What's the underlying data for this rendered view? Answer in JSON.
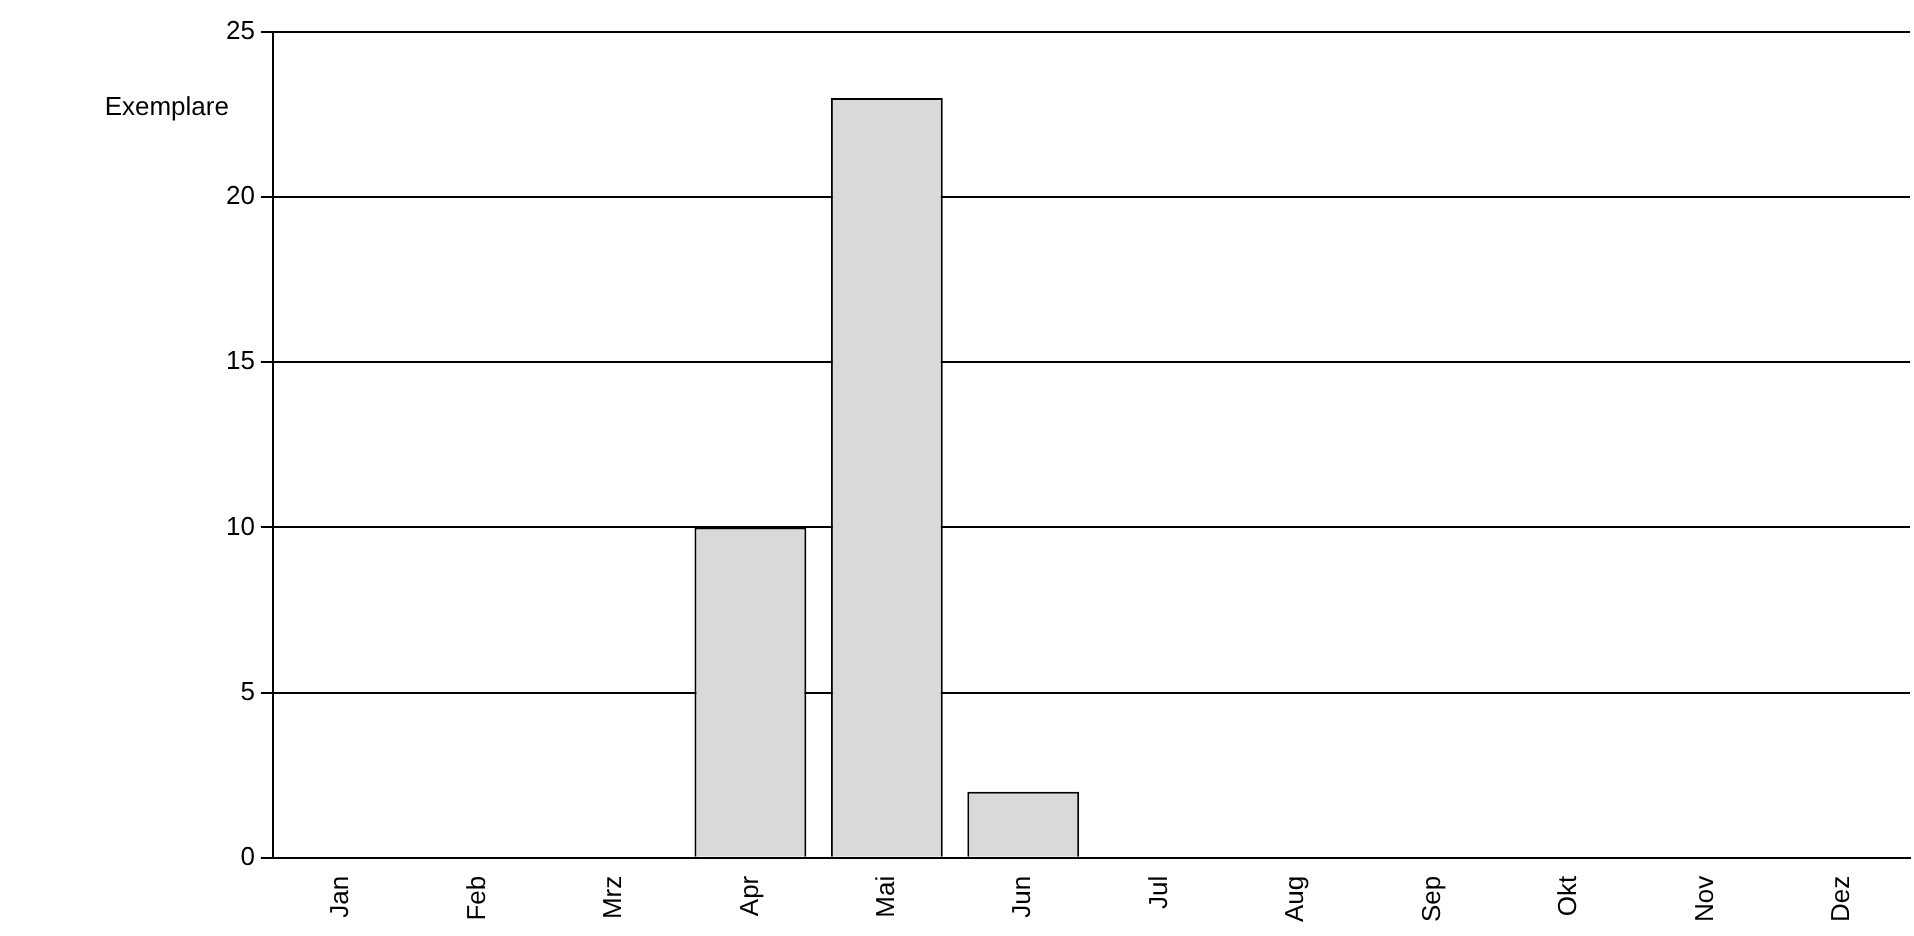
{
  "chart_data": {
    "type": "bar",
    "ylabel": "Exemplare",
    "categories": [
      "Jan",
      "Feb",
      "Mrz",
      "Apr",
      "Mai",
      "Jun",
      "Jul",
      "Aug",
      "Sep",
      "Okt",
      "Nov",
      "Dez"
    ],
    "values": [
      0,
      0,
      0,
      10,
      23,
      2,
      0,
      0,
      0,
      0,
      0,
      0
    ],
    "color": "#d9d9d9",
    "ylim": [
      0,
      25
    ],
    "yticks": [
      0,
      5,
      10,
      15,
      20,
      25
    ],
    "grid": "y",
    "legend": false
  }
}
